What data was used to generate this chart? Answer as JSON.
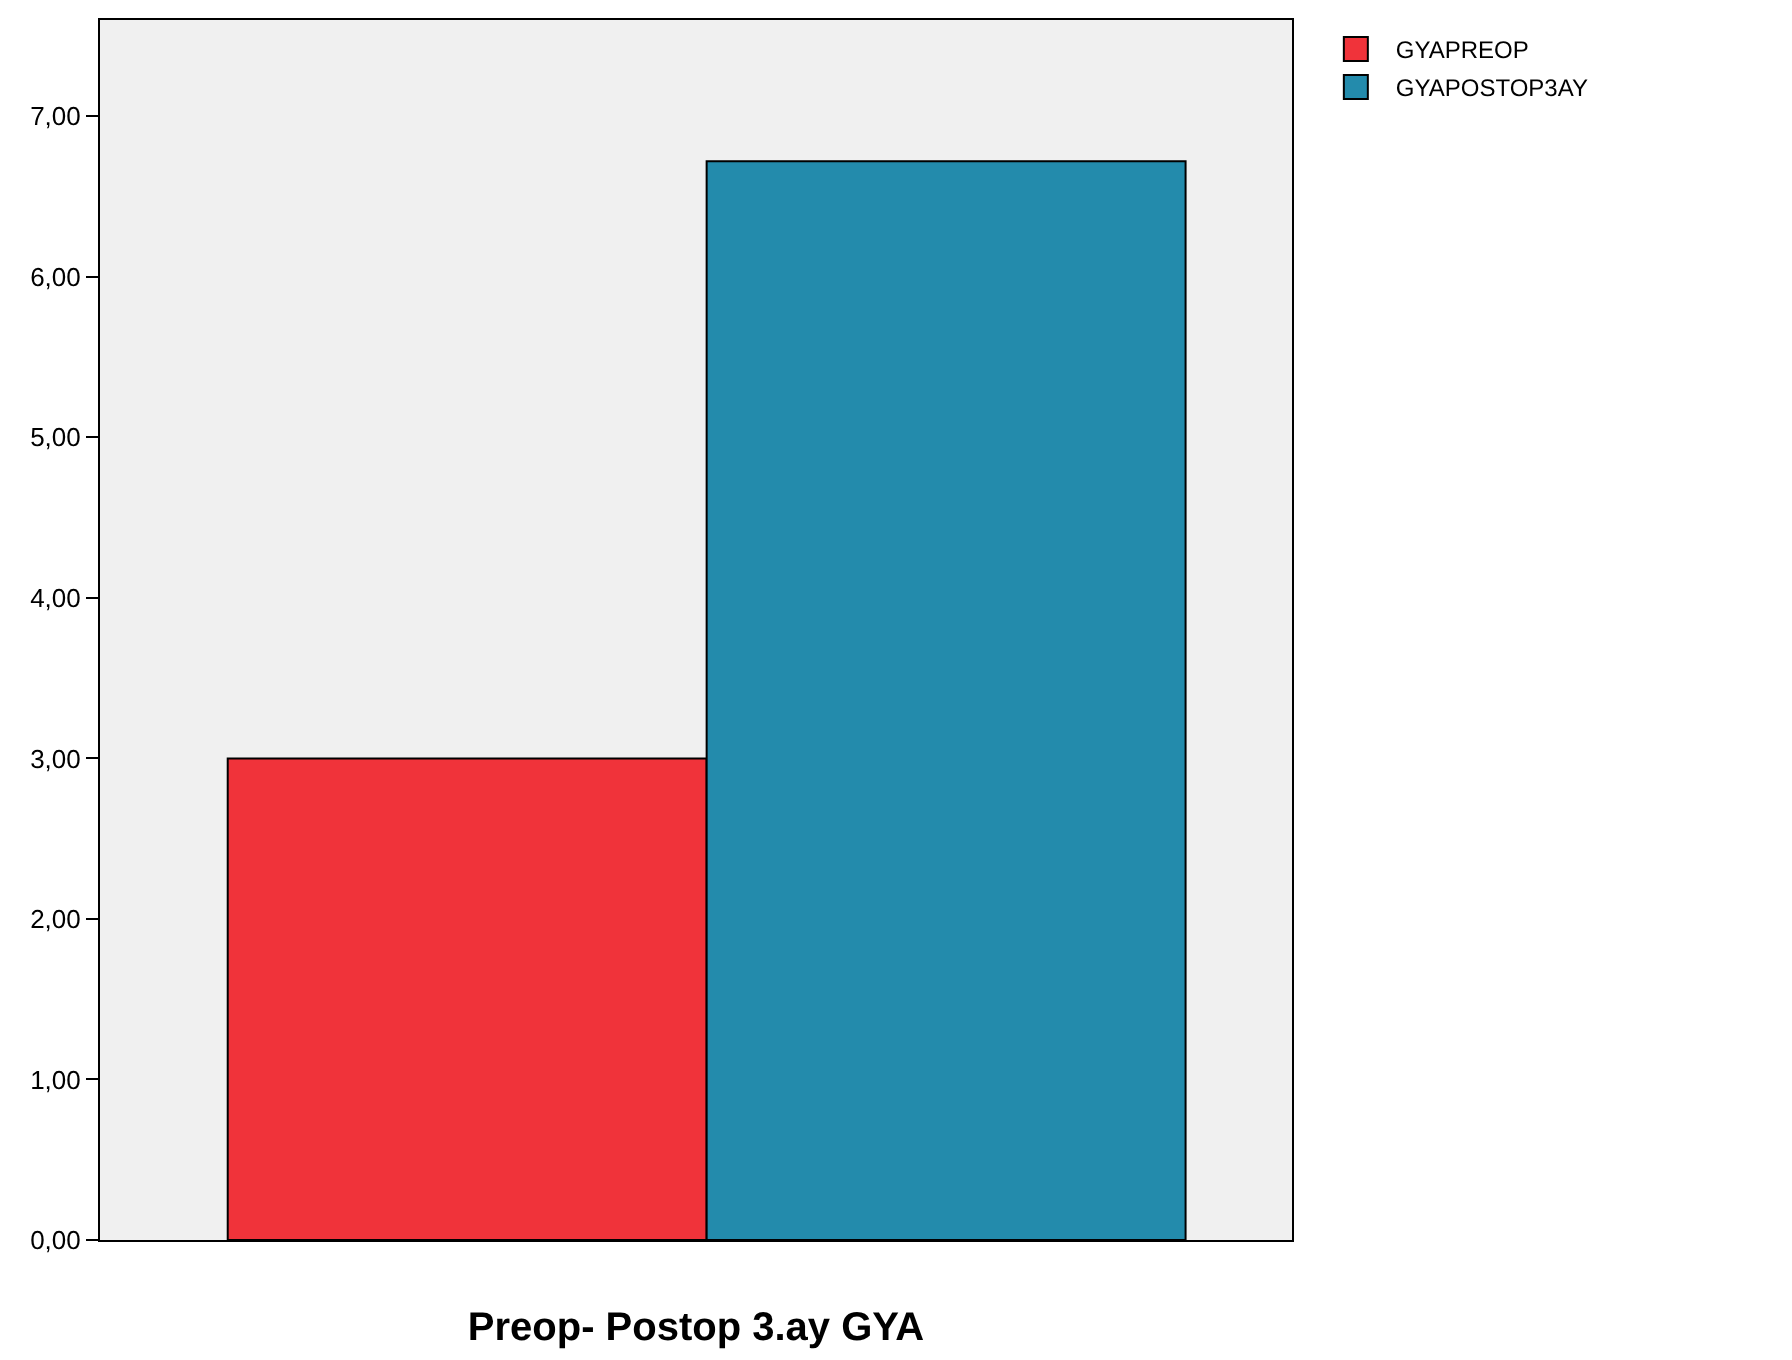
{
  "chart_data": {
    "type": "bar",
    "xlabel": "Preop- Postop 3.ay GYA",
    "categories": [
      null
    ],
    "series": [
      {
        "name": "GYAPREOP",
        "color": "#f0333a",
        "values": [
          3.0
        ]
      },
      {
        "name": "GYAPOSTOP3AY",
        "color": "#238bac",
        "values": [
          6.72
        ]
      }
    ],
    "ylim": [
      0,
      7.6
    ],
    "yticks": [
      {
        "value": 0,
        "label": "0,00"
      },
      {
        "value": 1,
        "label": "1,00"
      },
      {
        "value": 2,
        "label": "2,00"
      },
      {
        "value": 3,
        "label": "3,00"
      },
      {
        "value": 4,
        "label": "4,00"
      },
      {
        "value": 5,
        "label": "5,00"
      },
      {
        "value": 6,
        "label": "6,00"
      },
      {
        "value": 7,
        "label": "7,00"
      }
    ],
    "grid": false,
    "legend": "top right",
    "tick_labels": "y"
  }
}
